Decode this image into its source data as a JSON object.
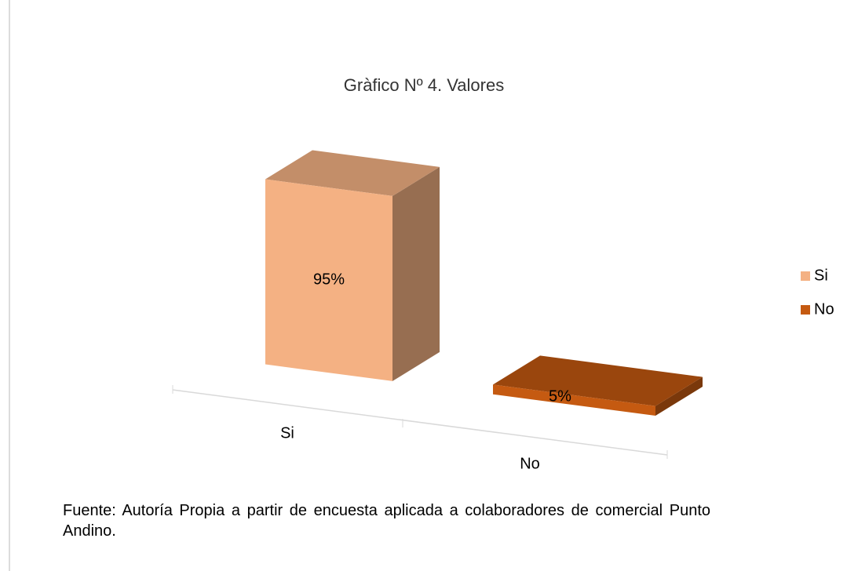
{
  "chart_data": {
    "type": "bar3d",
    "title": "Gràfico Nº 4. Valores",
    "categories": [
      "Si",
      "No"
    ],
    "values": [
      95,
      5
    ],
    "value_labels": [
      "95%",
      "5%"
    ],
    "colors": [
      "#f4b183",
      "#c55a11"
    ],
    "legend": "right"
  },
  "source": "Fuente:  Autoría Propia a partir de encuesta aplicada a colaboradores  de comercial Punto Andino."
}
